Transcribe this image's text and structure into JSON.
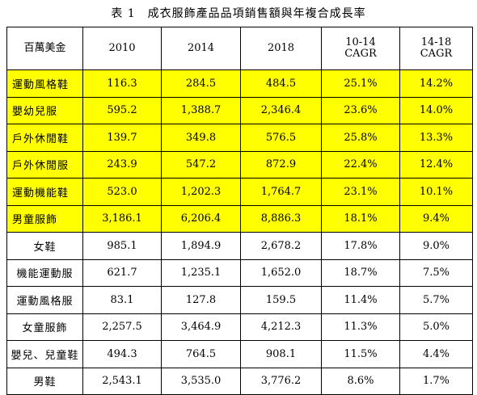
{
  "table": {
    "caption": "表 1　成衣服飾產品品項銷售額與年複合成長率",
    "header": {
      "unit": "百萬美金",
      "y2010": "2010",
      "y2014": "2014",
      "y2018": "2018",
      "cagr1_line1": "10-14",
      "cagr1_line2": "CAGR",
      "cagr2_line1": "14-18",
      "cagr2_line2": "CAGR"
    },
    "highlight_color": "#ffff00",
    "rows": [
      {
        "name": "運動風格鞋",
        "v2010": "116.3",
        "v2014": "284.5",
        "v2018": "484.5",
        "cagr1": "25.1%",
        "cagr2": "14.2%",
        "highlighted": true
      },
      {
        "name": "嬰幼兒服",
        "v2010": "595.2",
        "v2014": "1,388.7",
        "v2018": "2,346.4",
        "cagr1": "23.6%",
        "cagr2": "14.0%",
        "highlighted": true
      },
      {
        "name": "戶外休閒鞋",
        "v2010": "139.7",
        "v2014": "349.8",
        "v2018": "576.5",
        "cagr1": "25.8%",
        "cagr2": "13.3%",
        "highlighted": true
      },
      {
        "name": "戶外休閒服",
        "v2010": "243.9",
        "v2014": "547.2",
        "v2018": "872.9",
        "cagr1": "22.4%",
        "cagr2": "12.4%",
        "highlighted": true
      },
      {
        "name": "運動機能鞋",
        "v2010": "523.0",
        "v2014": "1,202.3",
        "v2018": "1,764.7",
        "cagr1": "23.1%",
        "cagr2": "10.1%",
        "highlighted": true
      },
      {
        "name": "男童服飾",
        "v2010": "3,186.1",
        "v2014": "6,206.4",
        "v2018": "8,886.3",
        "cagr1": "18.1%",
        "cagr2": "9.4%",
        "highlighted": true
      },
      {
        "name": "女鞋",
        "v2010": "985.1",
        "v2014": "1,894.9",
        "v2018": "2,678.2",
        "cagr1": "17.8%",
        "cagr2": "9.0%",
        "highlighted": false
      },
      {
        "name": "機能運動服",
        "v2010": "621.7",
        "v2014": "1,235.1",
        "v2018": "1,652.0",
        "cagr1": "18.7%",
        "cagr2": "7.5%",
        "highlighted": false
      },
      {
        "name": "運動風格服",
        "v2010": "83.1",
        "v2014": "127.8",
        "v2018": "159.5",
        "cagr1": "11.4%",
        "cagr2": "5.7%",
        "highlighted": false
      },
      {
        "name": "女童服飾",
        "v2010": "2,257.5",
        "v2014": "3,464.9",
        "v2018": "4,212.3",
        "cagr1": "11.3%",
        "cagr2": "5.0%",
        "highlighted": false
      },
      {
        "name": "嬰兒、兒童鞋",
        "v2010": "494.3",
        "v2014": "764.5",
        "v2018": "908.1",
        "cagr1": "11.5%",
        "cagr2": "4.4%",
        "highlighted": false
      },
      {
        "name": "男鞋",
        "v2010": "2,543.1",
        "v2014": "3,535.0",
        "v2018": "3,776.2",
        "cagr1": "8.6%",
        "cagr2": "1.7%",
        "highlighted": false
      }
    ]
  }
}
